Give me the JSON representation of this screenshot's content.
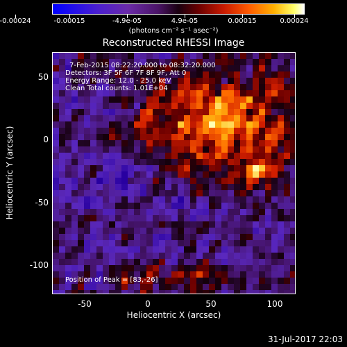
{
  "colorbar": {
    "ticks": [
      "-0.00024",
      "-0.00015",
      "-4.9e-05",
      "4.9e-05",
      "0.00015",
      "0.00024"
    ],
    "units_label": "(photons cm⁻² s⁻¹ asec⁻²)"
  },
  "plot": {
    "title": "Reconstructed RHESSI Image",
    "xlabel": "Heliocentric X (arcsec)",
    "ylabel": "Heliocentric Y (arcsec)",
    "xticks": [
      "-50",
      "0",
      "50",
      "100"
    ],
    "yticks": [
      "50",
      "0",
      "-50",
      "-100"
    ],
    "xlim": [
      -75,
      115
    ],
    "ylim": [
      -122,
      67
    ]
  },
  "annotations": {
    "time_range": "7-Feb-2015 08:22:20.000 to 08:32:20.000",
    "detectors": "Detectors: 3F 5F 6F 7F 8F 9F, Att 0",
    "energy_range": "Energy Range: 12.0 - 25.0 keV",
    "method": "Clean    Total counts: 1.01E+04",
    "peak": "Position of Peak = [83,-26]"
  },
  "timestamp": "31-Jul-2017 22:03"
}
